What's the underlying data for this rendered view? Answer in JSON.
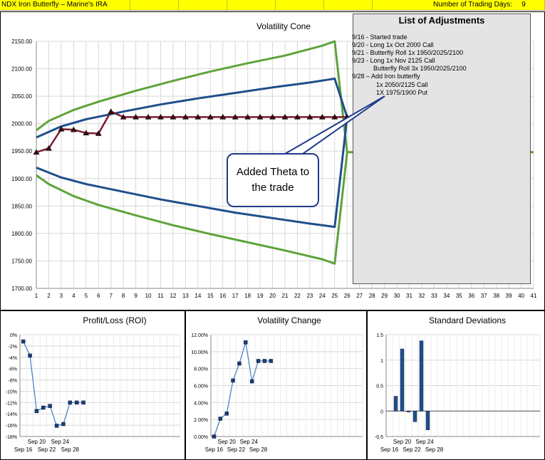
{
  "header": {
    "title": "NDX Iron Butterfly – Marine's IRA",
    "days_label": "Number of Trading Days:",
    "days_value": "9"
  },
  "adjustments": {
    "title": "List of Adjustments",
    "lines": [
      "9/16 - Started trade",
      "9/20 - Long 1x Oct 2000 Call",
      "9/21 - Butterfly Roll 1x 1950/2025/2100",
      "9/23 - Long 1x Nov 2125 Call",
      "Butterfly Roll 3x 1950/2025/2100",
      "9/28 – Add Iron butterfly",
      "1x 2050/2125 Call",
      "1X 1975/1900 Put"
    ]
  },
  "callout": {
    "text": "Added Theta to the trade"
  },
  "chart_data": [
    {
      "type": "line",
      "title": "Volatility Cone",
      "x": [
        1,
        2,
        3,
        4,
        5,
        6,
        7,
        8,
        9,
        10,
        11,
        12,
        13,
        14,
        15,
        16,
        17,
        18,
        19,
        20,
        21,
        22,
        23,
        24,
        25,
        26,
        27,
        28,
        29,
        30,
        31,
        32,
        33,
        34,
        35,
        36,
        37,
        38,
        39,
        40,
        41
      ],
      "ylim": [
        1700,
        2150
      ],
      "yticks": [
        "2150.00",
        "2100.00",
        "2050.00",
        "2000.00",
        "1950.00",
        "1900.00",
        "1850.00",
        "1800.00",
        "1750.00",
        "1700.00"
      ],
      "grid": true,
      "series": [
        {
          "role": "price",
          "color": "#7b1c2e",
          "x": [
            1,
            2,
            3,
            4,
            5,
            6,
            7,
            8,
            9,
            10,
            11,
            12,
            13,
            14,
            15,
            16,
            17,
            18,
            19,
            20,
            21,
            22,
            23,
            24,
            25,
            26
          ],
          "values": [
            1948,
            1955,
            1990,
            1989,
            1983,
            1982,
            2022,
            2012,
            2012,
            2012,
            2012,
            2012,
            2012,
            2012,
            2012,
            2012,
            2012,
            2012,
            2012,
            2012,
            2012,
            2012,
            2012,
            2012,
            2012,
            2012
          ]
        },
        {
          "role": "1sd-upper",
          "color": "#1f4e8c",
          "x": [
            1,
            3,
            5,
            8,
            11,
            14,
            17,
            20,
            23,
            25,
            26
          ],
          "values": [
            1975,
            1995,
            2008,
            2022,
            2035,
            2046,
            2056,
            2066,
            2075,
            2082,
            2012
          ]
        },
        {
          "role": "1sd-lower",
          "color": "#1f4e8c",
          "x": [
            1,
            3,
            5,
            8,
            11,
            14,
            17,
            20,
            23,
            25,
            26
          ],
          "values": [
            1920,
            1902,
            1890,
            1876,
            1862,
            1850,
            1838,
            1828,
            1818,
            1812,
            2012
          ]
        },
        {
          "role": "2sd-upper",
          "color": "#5ea33a",
          "x": [
            1,
            2,
            4,
            6,
            9,
            12,
            15,
            18,
            21,
            24,
            25,
            26,
            41
          ],
          "values": [
            1988,
            2005,
            2025,
            2040,
            2060,
            2078,
            2095,
            2110,
            2124,
            2142,
            2150,
            1948,
            1948
          ]
        },
        {
          "role": "2sd-lower",
          "color": "#5ea33a",
          "x": [
            1,
            2,
            4,
            6,
            9,
            12,
            15,
            18,
            21,
            24,
            25,
            26
          ],
          "values": [
            1906,
            1890,
            1868,
            1852,
            1833,
            1815,
            1799,
            1784,
            1769,
            1753,
            1745,
            1948
          ]
        }
      ]
    },
    {
      "type": "line",
      "title": "Profit/Loss (ROI)",
      "ylim": [
        -18,
        0
      ],
      "yticks": [
        "0%",
        "-2%",
        "-4%",
        "-6%",
        "-8%",
        "-10%",
        "-12%",
        "-14%",
        "-16%",
        "-18%"
      ],
      "xtick_labels_row1": [
        "Sep 20",
        "Sep 24"
      ],
      "xtick_labels_row2": [
        "Sep 16",
        "Sep 22",
        "Sep 28"
      ],
      "x": [
        0,
        1,
        2,
        3,
        4,
        5,
        6,
        7,
        8,
        9
      ],
      "values": [
        -1.2,
        -3.7,
        -13.5,
        -12.9,
        -12.6,
        -16.1,
        -15.8,
        -12.0,
        -12.0,
        -12.0
      ],
      "color": "#1f4e8c"
    },
    {
      "type": "line",
      "title": "Volatility Change",
      "ylim": [
        0,
        12
      ],
      "yticks": [
        "12.00%",
        "10.00%",
        "8.00%",
        "6.00%",
        "4.00%",
        "2.00%",
        "0.00%"
      ],
      "xtick_labels_row1": [
        "Sep 20",
        "Sep 24"
      ],
      "xtick_labels_row2": [
        "Sep 16",
        "Sep 22",
        "Sep 28"
      ],
      "x": [
        0,
        1,
        2,
        3,
        4,
        5,
        6,
        7,
        8,
        9
      ],
      "values": [
        0.0,
        2.1,
        2.7,
        6.6,
        8.6,
        11.1,
        6.5,
        8.9,
        8.9,
        8.9
      ],
      "color": "#1f4e8c"
    },
    {
      "type": "bar",
      "title": "Standard Deviations",
      "ylim": [
        -0.5,
        1.5
      ],
      "yticks": [
        "1.5",
        "1",
        "0.5",
        "0",
        "-0.5"
      ],
      "xtick_labels_row1": [
        "Sep 20",
        "Sep 24"
      ],
      "xtick_labels_row2": [
        "Sep 16",
        "Sep 22",
        "Sep 28"
      ],
      "x": [
        0,
        1,
        2,
        3,
        4,
        5
      ],
      "values": [
        0.29,
        1.22,
        -0.02,
        -0.21,
        1.38,
        -0.37
      ],
      "color": "#1f4e8c"
    }
  ]
}
